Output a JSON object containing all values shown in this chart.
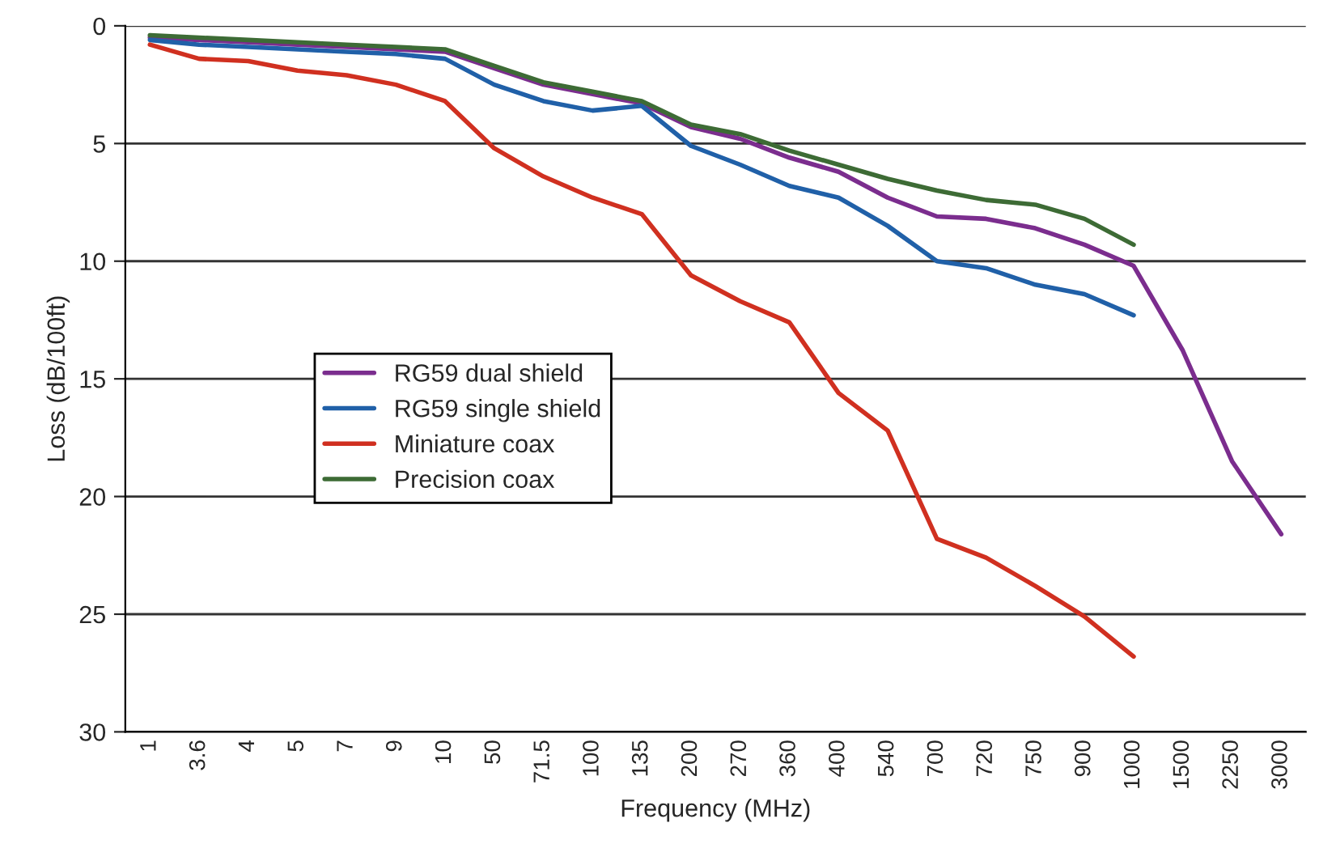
{
  "chart_data": {
    "type": "line",
    "xlabel": "Frequency (MHz)",
    "ylabel": "Loss (dB/100ft)",
    "categories": [
      "1",
      "3.6",
      "4",
      "5",
      "7",
      "9",
      "10",
      "50",
      "71.5",
      "100",
      "135",
      "200",
      "270",
      "360",
      "400",
      "540",
      "700",
      "720",
      "750",
      "900",
      "1000",
      "1500",
      "2250",
      "3000"
    ],
    "series": [
      {
        "name": "RG59 dual shield",
        "color": "#7b2d8e",
        "values": [
          0.5,
          0.6,
          0.7,
          0.8,
          0.9,
          1.0,
          1.1,
          1.8,
          2.5,
          2.9,
          3.3,
          4.3,
          4.8,
          5.6,
          6.2,
          7.3,
          8.1,
          8.2,
          8.6,
          9.3,
          10.2,
          13.8,
          18.5,
          21.6
        ]
      },
      {
        "name": "RG59 single shield",
        "color": "#2060a8",
        "values": [
          0.6,
          0.8,
          0.9,
          1.0,
          1.1,
          1.2,
          1.4,
          2.5,
          3.2,
          3.6,
          3.4,
          5.1,
          5.9,
          6.8,
          7.3,
          8.5,
          10.0,
          10.3,
          11.0,
          11.4,
          12.3,
          null,
          null,
          null
        ]
      },
      {
        "name": "Miniature coax",
        "color": "#d03020",
        "values": [
          0.8,
          1.4,
          1.5,
          1.9,
          2.1,
          2.5,
          3.2,
          5.2,
          6.4,
          7.3,
          8.0,
          10.6,
          11.7,
          12.6,
          15.6,
          17.2,
          21.8,
          22.6,
          23.8,
          25.1,
          26.8,
          null,
          null,
          null
        ]
      },
      {
        "name": "Precision coax",
        "color": "#3d6b35",
        "values": [
          0.4,
          0.5,
          0.6,
          0.7,
          0.8,
          0.9,
          1.0,
          1.7,
          2.4,
          2.8,
          3.2,
          4.2,
          4.6,
          5.3,
          5.9,
          6.5,
          7.0,
          7.4,
          7.6,
          8.2,
          9.3,
          null,
          null,
          null
        ]
      }
    ],
    "ylim": [
      30,
      0
    ],
    "yticks": [
      0,
      5,
      10,
      15,
      20,
      25,
      30
    ],
    "grid": "y",
    "legend": "center left",
    "line_style": "solid",
    "marker": "none"
  }
}
